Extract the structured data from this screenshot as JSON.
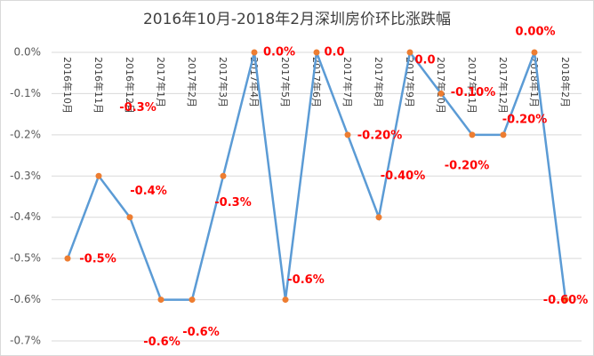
{
  "chart_data": {
    "type": "line",
    "title": "2016年10月-2018年2月深圳房价环比涨跌幅",
    "categories": [
      "2016年10月",
      "2016年11月",
      "2016年12月",
      "2017年1月",
      "2017年2月",
      "2017年3月",
      "2017年4月",
      "2017年5月",
      "2017年6月",
      "2017年7月",
      "2017年8月",
      "2017年9月",
      "2017年10月",
      "2017年11月",
      "2017年12月",
      "2018年1月",
      "2018年2月"
    ],
    "series": [
      {
        "color": "#5b9bd5",
        "marker_color": "#ed7d31",
        "values": [
          -0.5,
          -0.3,
          -0.4,
          -0.6,
          -0.6,
          -0.3,
          0.0,
          -0.6,
          0.0,
          -0.2,
          -0.4,
          0.0,
          -0.1,
          -0.2,
          -0.2,
          0.0,
          -0.6
        ],
        "value_labels": [
          "-0.5%",
          "-0.3%",
          "-0.4%",
          "-0.6%",
          "-0.6%",
          "-0.3%",
          "0.0%",
          "-0.6%",
          "0.0",
          "-0.20%",
          "-0.40%",
          "0.0",
          "-0.10%",
          "-0.20%",
          "-0.20%",
          "0.00%",
          "-0.60%"
        ]
      }
    ],
    "ylim": [
      -0.7,
      0.0
    ],
    "yticks": [
      {
        "value": 0.0,
        "label": "0.0%"
      },
      {
        "value": -0.1,
        "label": "-0.1%"
      },
      {
        "value": -0.2,
        "label": "-0.2%"
      },
      {
        "value": -0.3,
        "label": "-0.3%"
      },
      {
        "value": -0.4,
        "label": "-0.4%"
      },
      {
        "value": -0.5,
        "label": "-0.5%"
      },
      {
        "value": -0.6,
        "label": "-0.6%"
      },
      {
        "value": -0.7,
        "label": "-0.7%"
      }
    ],
    "grid": true
  }
}
